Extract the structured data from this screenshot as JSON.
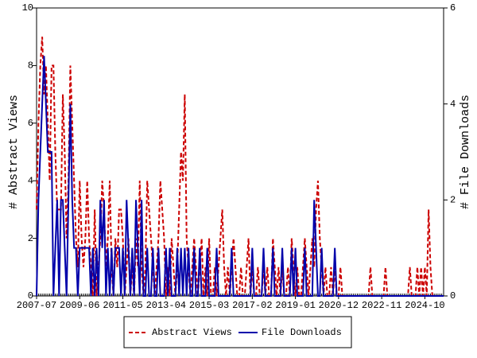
{
  "chart_data": {
    "type": "line",
    "categories": [
      "2007-07",
      null,
      null,
      null,
      null,
      null,
      null,
      null,
      null,
      null,
      null,
      null,
      null,
      null,
      null,
      null,
      null,
      null,
      null,
      null,
      null,
      null,
      null,
      "2009-06",
      null,
      null,
      null,
      null,
      null,
      null,
      null,
      null,
      null,
      null,
      null,
      null,
      null,
      null,
      null,
      null,
      null,
      null,
      null,
      null,
      null,
      null,
      "2011-05",
      null,
      null,
      null,
      null,
      null,
      null,
      null,
      null,
      null,
      null,
      null,
      null,
      null,
      null,
      null,
      null,
      null,
      null,
      null,
      null,
      null,
      null,
      "2013-04",
      null,
      null,
      null,
      null,
      null,
      null,
      null,
      null,
      null,
      null,
      null,
      null,
      null,
      null,
      null,
      null,
      null,
      null,
      null,
      null,
      null,
      null,
      "2015-03",
      null,
      null,
      null,
      null,
      null,
      null,
      null,
      null,
      null,
      null,
      null,
      null,
      null,
      null,
      null,
      null,
      null,
      null,
      null,
      null,
      null,
      null,
      "2017-02",
      null,
      null,
      null,
      null,
      null,
      null,
      null,
      null,
      null,
      null,
      null,
      null,
      null,
      null,
      null,
      null,
      null,
      null,
      null,
      null,
      null,
      null,
      "2019-01",
      null,
      null,
      null,
      null,
      null,
      null,
      null,
      null,
      null,
      null,
      null,
      null,
      null,
      null,
      null,
      null,
      null,
      null,
      null,
      null,
      null,
      null,
      "2020-12",
      null,
      null,
      null,
      null,
      null,
      null,
      null,
      null,
      null,
      null,
      null,
      null,
      null,
      null,
      null,
      null,
      null,
      null,
      null,
      null,
      null,
      null,
      "2022-11",
      null,
      null,
      null,
      null,
      null,
      null,
      null,
      null,
      null,
      null,
      null,
      null,
      null,
      null,
      null,
      null,
      null,
      null,
      null,
      null,
      null,
      null,
      "2024-10",
      null,
      null,
      null,
      null,
      null,
      null,
      null,
      null,
      null,
      null
    ],
    "ylabel": "# Abstract Views",
    "y2label": "# File Downloads",
    "ylim": [
      0,
      10
    ],
    "yticks": [
      0,
      2,
      4,
      6,
      8,
      10
    ],
    "y2lim": [
      0,
      6
    ],
    "y2ticks": [
      0,
      2,
      4,
      6
    ],
    "series": [
      {
        "name": "Abstract Views",
        "color": "#cc0000",
        "dashed": true,
        "axis": "y",
        "values": [
          3,
          6,
          8,
          9,
          7,
          8,
          6,
          4,
          8,
          8,
          5,
          3,
          3,
          3,
          7,
          5,
          2,
          4,
          8,
          6,
          4,
          2,
          1,
          4,
          2,
          1,
          2,
          4,
          2,
          1,
          0,
          3,
          0,
          1,
          2,
          4,
          3,
          1,
          2,
          4,
          1,
          0,
          2,
          1,
          3,
          3,
          2,
          0,
          1,
          2,
          0,
          1,
          0,
          2,
          1,
          4,
          1,
          0,
          1,
          4,
          3,
          2,
          1,
          0,
          1,
          2,
          4,
          3,
          2,
          0,
          1,
          0,
          2,
          1,
          0,
          1,
          3,
          5,
          4,
          7,
          2,
          1,
          0,
          1,
          2,
          1,
          0,
          1,
          2,
          0,
          1,
          0,
          2,
          0,
          0,
          1,
          0,
          1,
          2,
          3,
          1,
          0,
          1,
          0,
          1,
          2,
          1,
          0,
          0,
          1,
          0,
          0,
          1,
          2,
          0,
          1,
          0,
          0,
          1,
          0,
          0,
          1,
          0,
          1,
          0,
          0,
          2,
          1,
          0,
          1,
          0,
          1,
          0,
          0,
          1,
          0,
          2,
          1,
          0,
          1,
          0,
          0,
          1,
          2,
          1,
          0,
          1,
          2,
          1,
          3,
          4,
          2,
          1,
          0,
          1,
          0,
          0,
          1,
          0,
          1,
          0,
          0,
          1,
          0,
          0,
          0,
          0,
          0,
          0,
          0,
          0,
          0,
          0,
          0,
          0,
          0,
          0,
          0,
          1,
          0,
          0,
          0,
          0,
          0,
          0,
          0,
          1,
          0,
          0,
          0,
          0,
          0,
          0,
          0,
          0,
          0,
          0,
          0,
          0,
          1,
          0,
          0,
          0,
          1,
          0,
          1,
          0,
          1,
          0,
          3,
          1,
          0,
          0,
          0,
          0,
          0,
          0,
          0
        ]
      },
      {
        "name": "File Downloads",
        "color": "#0000aa",
        "dashed": false,
        "axis": "y2",
        "values": [
          0,
          2,
          3,
          4,
          5,
          4,
          3,
          3,
          3,
          0,
          1,
          2,
          0,
          2,
          2,
          1,
          0,
          2,
          4,
          2,
          1,
          1,
          0,
          1,
          1,
          1,
          1,
          1,
          1,
          0,
          1,
          0,
          1,
          0,
          2,
          1,
          2,
          0,
          1,
          0,
          1,
          0,
          1,
          1,
          1,
          0,
          1,
          0,
          2,
          1,
          0,
          1,
          0,
          2,
          1,
          0,
          2,
          0,
          0,
          1,
          0,
          0,
          1,
          0,
          0,
          1,
          0,
          0,
          0,
          1,
          0,
          1,
          0,
          0,
          0,
          1,
          0,
          1,
          0,
          1,
          0,
          1,
          0,
          0,
          1,
          0,
          0,
          1,
          0,
          0,
          0,
          1,
          0,
          0,
          0,
          0,
          1,
          0,
          0,
          0,
          0,
          0,
          0,
          0,
          1,
          0,
          0,
          0,
          0,
          0,
          0,
          0,
          0,
          0,
          0,
          1,
          0,
          0,
          0,
          0,
          0,
          1,
          0,
          0,
          0,
          0,
          1,
          0,
          0,
          0,
          0,
          1,
          0,
          0,
          0,
          0,
          1,
          0,
          1,
          0,
          0,
          0,
          0,
          1,
          0,
          0,
          0,
          0,
          2,
          1,
          0,
          0,
          1,
          0,
          0,
          0,
          0,
          0,
          0,
          1,
          0,
          0,
          0,
          0,
          0,
          0,
          0,
          0,
          0,
          0,
          0,
          0,
          0,
          0,
          0,
          0,
          0,
          0,
          0,
          0,
          0,
          0,
          0,
          0,
          0,
          0,
          0,
          0,
          0,
          0,
          0,
          0,
          0,
          0,
          0,
          0,
          0,
          0,
          0,
          0,
          0,
          0,
          0,
          0,
          0,
          0,
          0,
          0,
          0,
          0,
          0,
          0,
          0,
          0,
          0,
          0,
          0,
          0
        ]
      }
    ]
  }
}
